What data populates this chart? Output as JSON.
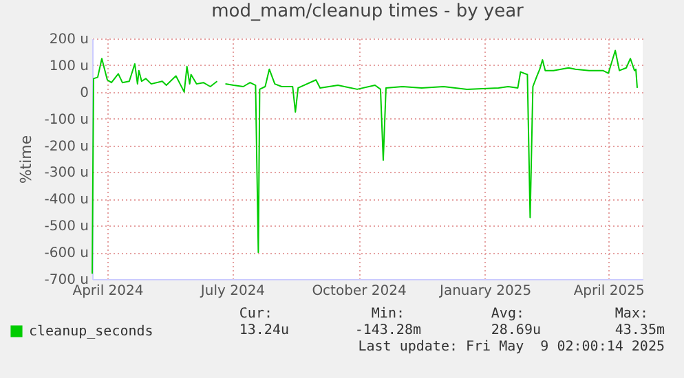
{
  "chart_data": {
    "type": "line",
    "title": "mod_mam/cleanup times - by year",
    "ylabel": "%time",
    "xlim": [
      "2024-03-21",
      "2025-04-26"
    ],
    "xticks": [
      {
        "value": "2024-04-01",
        "label": "April 2024"
      },
      {
        "value": "2024-07-01",
        "label": "July 2024"
      },
      {
        "value": "2024-10-01",
        "label": "October 2024"
      },
      {
        "value": "2025-01-01",
        "label": "January 2025"
      },
      {
        "value": "2025-04-01",
        "label": "April 2025"
      }
    ],
    "ylim": [
      -700,
      200
    ],
    "yticks": [
      {
        "value": 200,
        "label": "200 u"
      },
      {
        "value": 100,
        "label": "100 u"
      },
      {
        "value": 0,
        "label": "0"
      },
      {
        "value": -100,
        "label": "-100 u"
      },
      {
        "value": -200,
        "label": "-200 u"
      },
      {
        "value": -300,
        "label": "-300 u"
      },
      {
        "value": -400,
        "label": "-400 u"
      },
      {
        "value": -500,
        "label": "-500 u"
      },
      {
        "value": -600,
        "label": "-600 u"
      },
      {
        "value": -700,
        "label": "-700 u"
      }
    ],
    "grid": true,
    "legend": "bottom left",
    "x": [
      "2024-03-21",
      "2024-03-22",
      "2024-03-25",
      "2024-03-28",
      "2024-04-01",
      "2024-04-04",
      "2024-04-09",
      "2024-04-12",
      "2024-04-17",
      "2024-04-21",
      "2024-04-23",
      "2024-04-24",
      "2024-04-26",
      "2024-04-29",
      "2024-05-03",
      "2024-05-11",
      "2024-05-14",
      "2024-05-21",
      "2024-05-24",
      "2024-05-27",
      "2024-05-29",
      "2024-05-31",
      "2024-06-01",
      "2024-06-05",
      "2024-06-10",
      "2024-06-15",
      "2024-06-20",
      "2024-06-22",
      "2024-06-26",
      "2024-07-02",
      "2024-07-09",
      "2024-07-14",
      "2024-07-18",
      "2024-07-20",
      "2024-07-21",
      "2024-07-25",
      "2024-07-28",
      "2024-08-01",
      "2024-08-06",
      "2024-08-14",
      "2024-08-16",
      "2024-08-18",
      "2024-08-31",
      "2024-09-03",
      "2024-09-16",
      "2024-09-30",
      "2024-10-13",
      "2024-10-17",
      "2024-10-19",
      "2024-10-21",
      "2024-11-02",
      "2024-11-16",
      "2024-12-02",
      "2024-12-19",
      "2025-01-11",
      "2025-01-18",
      "2025-01-25",
      "2025-01-27",
      "2025-02-01",
      "2025-02-03",
      "2025-02-05",
      "2025-02-08",
      "2025-02-10",
      "2025-02-12",
      "2025-02-14",
      "2025-02-20",
      "2025-03-03",
      "2025-03-08",
      "2025-03-18",
      "2025-03-28",
      "2025-04-01",
      "2025-04-06",
      "2025-04-09",
      "2025-04-14",
      "2025-04-17",
      "2025-04-20",
      "2025-04-21",
      "2025-04-22"
    ],
    "series": [
      {
        "name": "cleanup_seconds",
        "color": "#00cc00",
        "values": [
          -680,
          50,
          55,
          125,
          45,
          35,
          68,
          35,
          40,
          105,
          30,
          80,
          40,
          50,
          30,
          40,
          25,
          60,
          30,
          0,
          95,
          30,
          65,
          30,
          35,
          20,
          40,
          null,
          30,
          25,
          20,
          35,
          25,
          -600,
          10,
          20,
          85,
          30,
          20,
          20,
          -75,
          15,
          45,
          15,
          25,
          10,
          25,
          10,
          -255,
          15,
          20,
          15,
          20,
          10,
          15,
          20,
          15,
          75,
          65,
          -470,
          20,
          60,
          85,
          120,
          80,
          80,
          90,
          85,
          80,
          80,
          70,
          155,
          80,
          90,
          125,
          80,
          85,
          15
        ]
      }
    ],
    "annotations": [
      "Cur:",
      "13.24u",
      "Min:",
      "-143.28m",
      "Avg:",
      "28.69u",
      "Max:",
      "43.35m",
      "Last update: Fri May  9 02:00:14 2025"
    ]
  }
}
